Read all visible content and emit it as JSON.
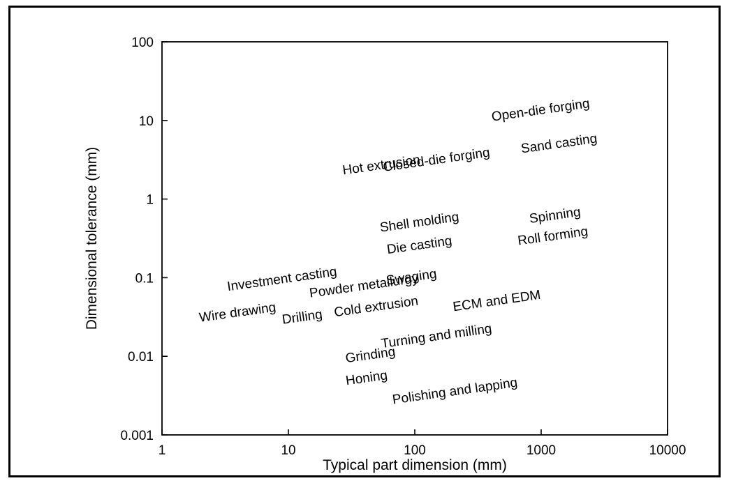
{
  "chart_data": {
    "type": "scatter",
    "title": "",
    "xlabel": "Typical part dimension (mm)",
    "ylabel": "Dimensional tolerance (mm)",
    "xscale": "log",
    "yscale": "log",
    "xlim": [
      1,
      10000
    ],
    "ylim": [
      0.001,
      100
    ],
    "x_ticks": [
      "1",
      "10",
      "100",
      "1000",
      "10000"
    ],
    "y_ticks": [
      "0.001",
      "0.01",
      "0.1",
      "1",
      "10",
      "100"
    ],
    "grid": false,
    "legend": "none",
    "label_angle_deg": -8,
    "labels": [
      {
        "text": "Open-die forging",
        "x": 1000,
        "y": 12
      },
      {
        "text": "Hot extrusion",
        "x": 55,
        "y": 2.4
      },
      {
        "text": "Closed-die forging",
        "x": 150,
        "y": 2.8
      },
      {
        "text": "Sand casting",
        "x": 1400,
        "y": 4.5
      },
      {
        "text": "Shell molding",
        "x": 110,
        "y": 0.45
      },
      {
        "text": "Spinning",
        "x": 1300,
        "y": 0.55
      },
      {
        "text": "Die casting",
        "x": 110,
        "y": 0.23
      },
      {
        "text": "Roll forming",
        "x": 1250,
        "y": 0.3
      },
      {
        "text": "Investment casting",
        "x": 9,
        "y": 0.085
      },
      {
        "text": "Powder metallurgy",
        "x": 40,
        "y": 0.07
      },
      {
        "text": "Swaging",
        "x": 95,
        "y": 0.09
      },
      {
        "text": "Wire drawing",
        "x": 4,
        "y": 0.032
      },
      {
        "text": "Drilling",
        "x": 13,
        "y": 0.028
      },
      {
        "text": "Cold extrusion",
        "x": 50,
        "y": 0.038
      },
      {
        "text": "ECM and EDM",
        "x": 450,
        "y": 0.045
      },
      {
        "text": "Turning and milling",
        "x": 150,
        "y": 0.016
      },
      {
        "text": "Grinding",
        "x": 45,
        "y": 0.0092
      },
      {
        "text": "Honing",
        "x": 42,
        "y": 0.0047
      },
      {
        "text": "Polishing and lapping",
        "x": 210,
        "y": 0.0032
      }
    ]
  }
}
